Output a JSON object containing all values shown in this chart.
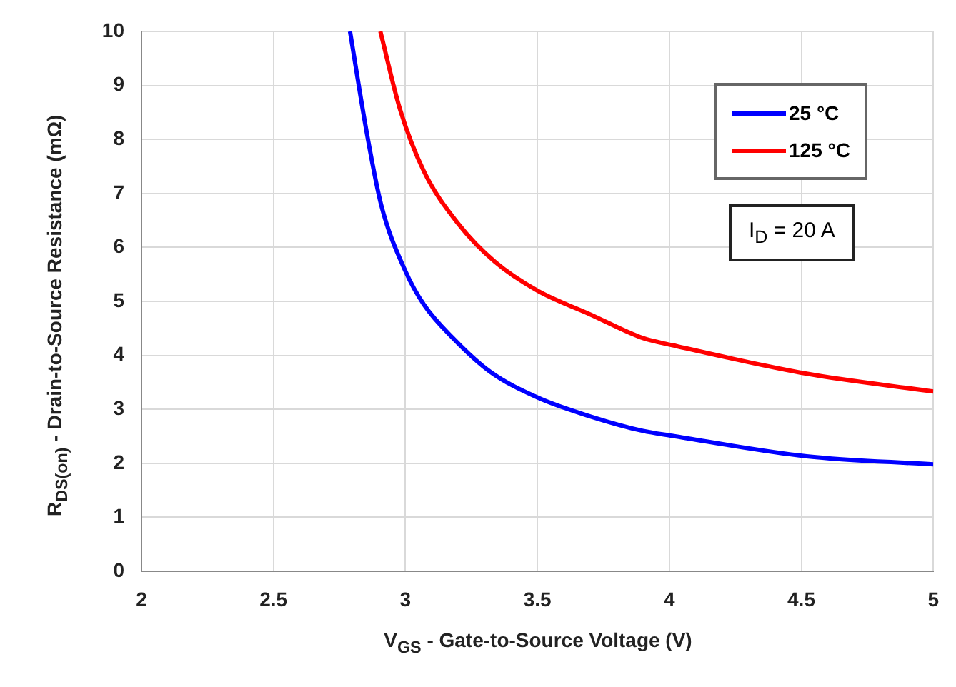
{
  "chart_data": {
    "type": "line",
    "xlabel": "V$_{GS}$ - Gate-to-Source Voltage (V)",
    "ylabel": "R$_{DS(on)}$ - Drain-to-Source Resistance (mΩ)",
    "xlim": [
      2,
      5
    ],
    "xticks": [
      2,
      2.5,
      3,
      3.5,
      4,
      4.5,
      5
    ],
    "ylim": [
      0,
      10
    ],
    "yticks": [
      0,
      1,
      2,
      3,
      4,
      5,
      6,
      7,
      8,
      9,
      10
    ],
    "grid": true,
    "legend": "top right",
    "marker": "none",
    "line_style": "solid",
    "annotations": [
      "I$_{D}$ = 20 A"
    ],
    "series": [
      {
        "name": "25 °C",
        "color": "#0000ff",
        "x": [
          2.79,
          2.854,
          2.908,
          3.0,
          3.07,
          3.18,
          3.32,
          3.5,
          3.7,
          3.9,
          4.01,
          4.52,
          5.0
        ],
        "values": [
          10,
          8.11,
          6.79,
          5.56,
          4.94,
          4.32,
          3.7,
          3.22,
          2.87,
          2.6,
          2.51,
          2.13,
          1.98
        ]
      },
      {
        "name": "125 °C",
        "color": "#ff0000",
        "x": [
          2.905,
          2.98,
          3.07,
          3.2,
          3.34,
          3.5,
          3.7,
          3.9,
          4.01,
          4.52,
          5.0
        ],
        "values": [
          10,
          8.55,
          7.41,
          6.44,
          5.73,
          5.2,
          4.76,
          4.32,
          4.19,
          3.66,
          3.33
        ]
      }
    ]
  }
}
